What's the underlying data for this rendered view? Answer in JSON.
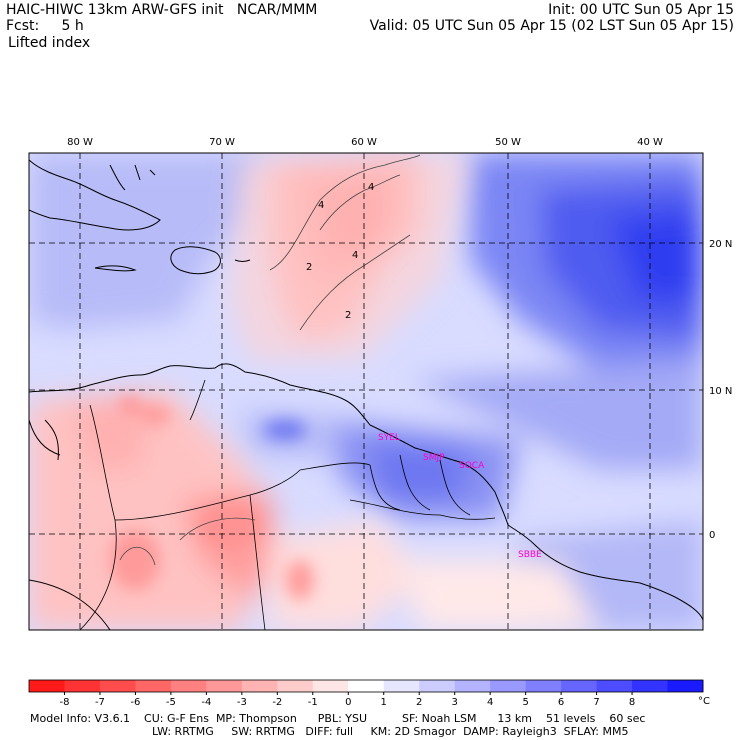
{
  "header": {
    "title": "HAIC-HIWC 13km ARW-GFS init   NCAR/MMM",
    "init": "Init: 00 UTC Sun 05 Apr 15",
    "fcst": "Fcst:     5 h",
    "valid": "Valid: 05 UTC Sun 05 Apr 15 (02 LST Sun 05 Apr 15)",
    "field": "Lifted index"
  },
  "map": {
    "lon_labels": [
      "80 W",
      "70 W",
      "60 W",
      "50 W",
      "40 W"
    ],
    "lat_labels": [
      "20 N",
      "10 N",
      "0"
    ],
    "stations": [
      "SYEL",
      "SMJP",
      "SOCA",
      "SBBE"
    ],
    "contour_labels": [
      "4",
      "4",
      "2",
      "2",
      "4"
    ]
  },
  "colorbar": {
    "ticks": [
      "-8",
      "-7",
      "-6",
      "-5",
      "-4",
      "-3",
      "-2",
      "-1",
      "0",
      "1",
      "2",
      "3",
      "4",
      "5",
      "6",
      "7",
      "8"
    ],
    "unit": "°C",
    "colors": [
      "#ff1a1a",
      "#ff3333",
      "#ff4d4d",
      "#ff6666",
      "#ff8080",
      "#ff9999",
      "#ffb3b3",
      "#ffcccc",
      "#ffe6e6",
      "#ffffff",
      "#e6e6ff",
      "#ccccff",
      "#b3b3ff",
      "#9999ff",
      "#8080ff",
      "#6666ff",
      "#4d4dff",
      "#3333ff",
      "#1a1aff"
    ]
  },
  "footer": {
    "line1": "Model Info: V3.6.1    CU: G-F Ens  MP: Thompson      PBL: YSU          SF: Noah LSM      13 km    51 levels    60 sec",
    "line2": "LW: RRTMG     SW: RRTMG   DIFF: full     KM: 2D Smagor  DAMP: Rayleigh3  SFLAY: MM5"
  }
}
